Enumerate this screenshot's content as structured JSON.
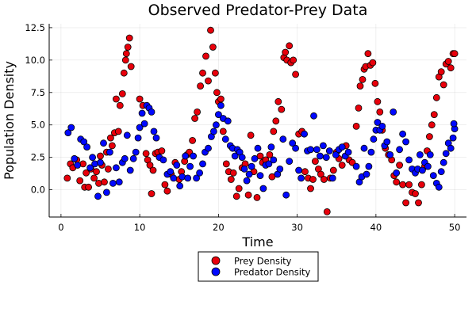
{
  "chart_data": {
    "type": "scatter",
    "title": "Observed Predator-Prey Data",
    "xlabel": "Time",
    "ylabel": "Population Density",
    "xlim": [
      -1.5,
      51.5
    ],
    "ylim": [
      -2.1,
      12.8
    ],
    "x_ticks": [
      0,
      10,
      20,
      30,
      40,
      50
    ],
    "x_tick_labels": [
      "0",
      "10",
      "20",
      "30",
      "40",
      "50"
    ],
    "y_ticks": [
      0,
      2.5,
      5,
      7.5,
      10,
      12.5
    ],
    "y_tick_labels": [
      "0.0",
      "2.5",
      "5.0",
      "7.5",
      "10.0",
      "12.5"
    ],
    "grid": true,
    "legend_position": "bottom-center",
    "series": [
      {
        "name": "Prey Density",
        "color": "#e8000b",
        "points": [
          [
            0.8,
            0.9
          ],
          [
            1.2,
            2.0
          ],
          [
            1.5,
            1.7
          ],
          [
            2.0,
            2.3
          ],
          [
            2.4,
            0.7
          ],
          [
            2.8,
            2.0
          ],
          [
            3.0,
            0.2
          ],
          [
            3.2,
            1.3
          ],
          [
            3.5,
            0.2
          ],
          [
            3.8,
            1.6
          ],
          [
            4.2,
            0.9
          ],
          [
            4.5,
            1.4
          ],
          [
            4.8,
            0.5
          ],
          [
            5.0,
            2.6
          ],
          [
            5.2,
            1.9
          ],
          [
            5.5,
            0.6
          ],
          [
            5.8,
            2.9
          ],
          [
            6.0,
            1.6
          ],
          [
            6.3,
            4.0
          ],
          [
            6.5,
            3.4
          ],
          [
            6.8,
            4.4
          ],
          [
            7.0,
            7.0
          ],
          [
            7.3,
            4.5
          ],
          [
            7.5,
            6.5
          ],
          [
            7.8,
            7.4
          ],
          [
            8.0,
            9.0
          ],
          [
            8.2,
            10.0
          ],
          [
            8.3,
            10.5
          ],
          [
            8.5,
            11.0
          ],
          [
            8.7,
            11.7
          ],
          [
            8.9,
            9.5
          ],
          [
            10.0,
            7.0
          ],
          [
            10.4,
            6.5
          ],
          [
            10.8,
            2.8
          ],
          [
            11.0,
            2.3
          ],
          [
            11.3,
            1.9
          ],
          [
            11.5,
            -0.3
          ],
          [
            11.7,
            1.5
          ],
          [
            12.0,
            2.8
          ],
          [
            12.3,
            2.9
          ],
          [
            12.8,
            3.0
          ],
          [
            13.2,
            0.4
          ],
          [
            13.5,
            -0.1
          ],
          [
            14.0,
            1.2
          ],
          [
            14.5,
            2.1
          ],
          [
            15.0,
            0.8
          ],
          [
            15.3,
            1.4
          ],
          [
            15.7,
            2.2
          ],
          [
            16.0,
            2.7
          ],
          [
            16.3,
            2.9
          ],
          [
            16.7,
            3.8
          ],
          [
            17.0,
            5.5
          ],
          [
            17.3,
            6.0
          ],
          [
            17.7,
            8.0
          ],
          [
            18.0,
            9.0
          ],
          [
            18.4,
            10.3
          ],
          [
            18.7,
            8.4
          ],
          [
            19.0,
            12.3
          ],
          [
            19.3,
            11.0
          ],
          [
            19.6,
            9.0
          ],
          [
            19.8,
            7.5
          ],
          [
            20.0,
            6.8
          ],
          [
            20.3,
            7.0
          ],
          [
            20.6,
            4.5
          ],
          [
            21.0,
            2.0
          ],
          [
            21.3,
            1.4
          ],
          [
            21.6,
            0.8
          ],
          [
            21.9,
            1.3
          ],
          [
            22.3,
            -0.5
          ],
          [
            22.6,
            0.1
          ],
          [
            23.0,
            1.7
          ],
          [
            23.4,
            2.0
          ],
          [
            23.8,
            -0.4
          ],
          [
            24.1,
            4.2
          ],
          [
            24.5,
            1.4
          ],
          [
            24.9,
            -0.6
          ],
          [
            25.3,
            2.6
          ],
          [
            25.6,
            2.1
          ],
          [
            26.0,
            2.3
          ],
          [
            26.5,
            2.7
          ],
          [
            26.8,
            1.0
          ],
          [
            27.0,
            4.5
          ],
          [
            27.3,
            5.3
          ],
          [
            27.6,
            6.8
          ],
          [
            28.0,
            6.2
          ],
          [
            28.3,
            10.2
          ],
          [
            28.5,
            10.6
          ],
          [
            28.7,
            10.0
          ],
          [
            29.0,
            11.1
          ],
          [
            29.2,
            9.8
          ],
          [
            29.5,
            10.0
          ],
          [
            29.8,
            8.9
          ],
          [
            30.2,
            4.3
          ],
          [
            30.6,
            4.5
          ],
          [
            31.0,
            1.4
          ],
          [
            31.4,
            0.9
          ],
          [
            31.7,
            0.1
          ],
          [
            32.0,
            0.8
          ],
          [
            32.3,
            2.2
          ],
          [
            32.7,
            1.6
          ],
          [
            33.0,
            1.2
          ],
          [
            33.4,
            0.8
          ],
          [
            33.8,
            -1.7
          ],
          [
            34.2,
            0.9
          ],
          [
            34.6,
            1.5
          ],
          [
            35.0,
            2.9
          ],
          [
            35.3,
            2.4
          ],
          [
            35.7,
            1.9
          ],
          [
            36.2,
            3.4
          ],
          [
            36.6,
            2.3
          ],
          [
            37.0,
            2.1
          ],
          [
            37.5,
            4.9
          ],
          [
            37.8,
            6.3
          ],
          [
            38.0,
            8.0
          ],
          [
            38.3,
            8.5
          ],
          [
            38.5,
            9.3
          ],
          [
            38.7,
            9.5
          ],
          [
            39.0,
            10.5
          ],
          [
            39.3,
            9.6
          ],
          [
            39.6,
            9.8
          ],
          [
            39.9,
            8.2
          ],
          [
            40.2,
            6.8
          ],
          [
            40.5,
            6.0
          ],
          [
            40.8,
            4.6
          ],
          [
            41.2,
            3.2
          ],
          [
            41.6,
            2.7
          ],
          [
            42.0,
            2.3
          ],
          [
            42.3,
            1.1
          ],
          [
            42.6,
            0.6
          ],
          [
            43.0,
            1.9
          ],
          [
            43.4,
            0.4
          ],
          [
            43.8,
            -1.0
          ],
          [
            44.2,
            0.4
          ],
          [
            44.6,
            -0.2
          ],
          [
            45.0,
            -0.3
          ],
          [
            45.4,
            -1.0
          ],
          [
            45.8,
            0.4
          ],
          [
            46.2,
            1.8
          ],
          [
            46.5,
            3.0
          ],
          [
            46.8,
            4.1
          ],
          [
            47.1,
            5.0
          ],
          [
            47.4,
            5.8
          ],
          [
            47.7,
            7.1
          ],
          [
            48.0,
            8.7
          ],
          [
            48.3,
            9.1
          ],
          [
            48.6,
            8.1
          ],
          [
            48.9,
            9.7
          ],
          [
            49.2,
            9.9
          ],
          [
            49.5,
            9.4
          ],
          [
            49.8,
            10.5
          ],
          [
            50.0,
            10.5
          ]
        ]
      },
      {
        "name": "Predator Density",
        "color": "#0008ff",
        "points": [
          [
            0.9,
            4.4
          ],
          [
            1.3,
            4.8
          ],
          [
            1.7,
            2.4
          ],
          [
            2.1,
            1.9
          ],
          [
            2.5,
            3.9
          ],
          [
            2.9,
            3.7
          ],
          [
            3.3,
            3.3
          ],
          [
            3.7,
            1.7
          ],
          [
            4.0,
            2.5
          ],
          [
            4.3,
            2.0
          ],
          [
            4.7,
            -0.5
          ],
          [
            5.0,
            2.1
          ],
          [
            5.4,
            3.6
          ],
          [
            5.8,
            -0.2
          ],
          [
            6.2,
            2.9
          ],
          [
            6.6,
            0.5
          ],
          [
            7.0,
            1.7
          ],
          [
            7.4,
            0.6
          ],
          [
            7.8,
            2.1
          ],
          [
            8.1,
            2.4
          ],
          [
            8.4,
            4.2
          ],
          [
            8.8,
            1.5
          ],
          [
            9.2,
            2.4
          ],
          [
            9.5,
            2.9
          ],
          [
            9.8,
            4.0
          ],
          [
            10.0,
            4.8
          ],
          [
            10.3,
            5.9
          ],
          [
            10.6,
            5.1
          ],
          [
            10.9,
            6.5
          ],
          [
            11.2,
            6.3
          ],
          [
            11.5,
            6.0
          ],
          [
            11.8,
            4.5
          ],
          [
            12.1,
            4.0
          ],
          [
            12.5,
            2.5
          ],
          [
            13.0,
            2.3
          ],
          [
            13.5,
            1.2
          ],
          [
            13.9,
            1.4
          ],
          [
            14.3,
            0.9
          ],
          [
            14.7,
            1.9
          ],
          [
            15.1,
            0.3
          ],
          [
            15.4,
            1.0
          ],
          [
            15.8,
            2.6
          ],
          [
            16.1,
            0.9
          ],
          [
            16.4,
            1.8
          ],
          [
            16.8,
            2.6
          ],
          [
            17.2,
            0.9
          ],
          [
            17.6,
            1.3
          ],
          [
            18.0,
            2.0
          ],
          [
            18.3,
            2.9
          ],
          [
            18.7,
            3.2
          ],
          [
            19.1,
            4.1
          ],
          [
            19.4,
            4.5
          ],
          [
            19.7,
            5.0
          ],
          [
            20.0,
            5.8
          ],
          [
            20.3,
            6.5
          ],
          [
            20.6,
            5.5
          ],
          [
            20.9,
            3.9
          ],
          [
            21.2,
            5.3
          ],
          [
            21.5,
            3.4
          ],
          [
            21.8,
            3.2
          ],
          [
            22.1,
            2.6
          ],
          [
            22.4,
            3.1
          ],
          [
            22.7,
            2.9
          ],
          [
            23.0,
            2.5
          ],
          [
            23.3,
            1.6
          ],
          [
            23.6,
            0.7
          ],
          [
            23.9,
            1.2
          ],
          [
            24.2,
            1.8
          ],
          [
            24.6,
            2.4
          ],
          [
            25.0,
            3.2
          ],
          [
            25.3,
            1.1
          ],
          [
            25.7,
            0.1
          ],
          [
            26.0,
            1.9
          ],
          [
            26.4,
            2.0
          ],
          [
            26.7,
            3.3
          ],
          [
            27.0,
            2.3
          ],
          [
            27.5,
            1.2
          ],
          [
            27.8,
            1.6
          ],
          [
            28.2,
            3.9
          ],
          [
            28.6,
            -0.4
          ],
          [
            29.0,
            2.2
          ],
          [
            29.4,
            3.6
          ],
          [
            29.8,
            3.2
          ],
          [
            30.2,
            1.5
          ],
          [
            30.5,
            0.9
          ],
          [
            30.9,
            4.3
          ],
          [
            31.3,
            3.0
          ],
          [
            31.7,
            3.1
          ],
          [
            32.1,
            5.7
          ],
          [
            32.5,
            3.1
          ],
          [
            32.9,
            2.6
          ],
          [
            33.3,
            3.4
          ],
          [
            33.7,
            2.5
          ],
          [
            34.1,
            3.0
          ],
          [
            34.5,
            0.9
          ],
          [
            34.9,
            2.7
          ],
          [
            35.3,
            3.1
          ],
          [
            35.7,
            3.3
          ],
          [
            36.1,
            2.6
          ],
          [
            36.5,
            2.9
          ],
          [
            37.5,
            1.8
          ],
          [
            37.9,
            0.6
          ],
          [
            38.2,
            1.0
          ],
          [
            38.5,
            3.2
          ],
          [
            38.8,
            1.2
          ],
          [
            39.1,
            1.8
          ],
          [
            39.4,
            2.9
          ],
          [
            39.7,
            3.9
          ],
          [
            40.0,
            4.6
          ],
          [
            40.2,
            5.2
          ],
          [
            40.5,
            4.6
          ],
          [
            40.8,
            4.9
          ],
          [
            41.1,
            3.4
          ],
          [
            41.4,
            3.7
          ],
          [
            41.8,
            2.7
          ],
          [
            42.2,
            6.0
          ],
          [
            42.6,
            1.3
          ],
          [
            43.0,
            3.1
          ],
          [
            43.4,
            4.3
          ],
          [
            43.8,
            3.7
          ],
          [
            44.2,
            2.3
          ],
          [
            44.6,
            1.6
          ],
          [
            45.0,
            1.3
          ],
          [
            45.3,
            1.6
          ],
          [
            45.6,
            2.7
          ],
          [
            45.9,
            1.5
          ],
          [
            46.2,
            2.1
          ],
          [
            46.6,
            1.8
          ],
          [
            46.9,
            2.7
          ],
          [
            47.3,
            1.1
          ],
          [
            47.7,
            0.5
          ],
          [
            48.0,
            0.2
          ],
          [
            48.3,
            1.4
          ],
          [
            48.6,
            2.1
          ],
          [
            48.9,
            2.8
          ],
          [
            49.2,
            3.6
          ],
          [
            49.5,
            3.2
          ],
          [
            49.8,
            4.0
          ],
          [
            50.0,
            4.7
          ],
          [
            49.9,
            5.1
          ]
        ]
      }
    ]
  }
}
